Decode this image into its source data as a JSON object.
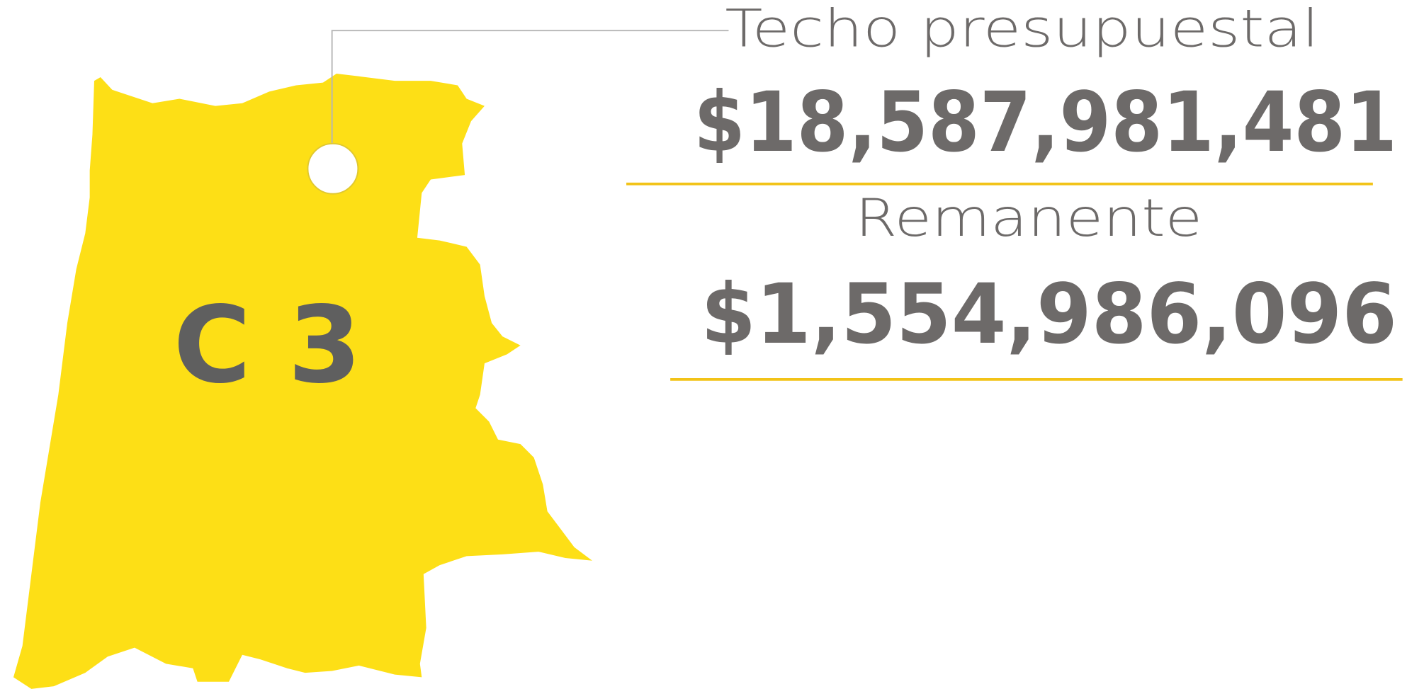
{
  "map": {
    "region_label": "C 3"
  },
  "budget": {
    "ceiling_label": "Techo presupuestal",
    "ceiling_value": "$18,587,981,481",
    "remainder_label": "Remanente",
    "remainder_value": "$1,554,986,096"
  }
}
